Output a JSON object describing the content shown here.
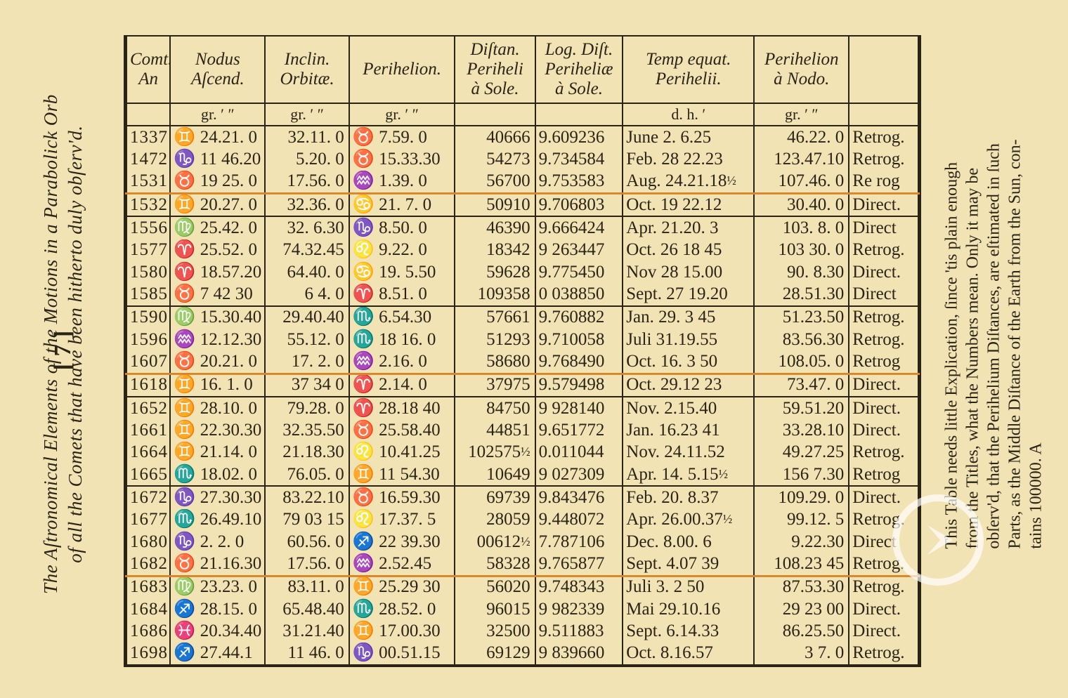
{
  "page_number_label": "[ 7 ]",
  "left_title_line1": "The Aſtronomical Elements of the Motions in a Parabolick Orb",
  "left_title_line2": "of all the Comets that have been hitherto duly obſerv'd.",
  "right_caption_line1": "This Table needs little Explication, ſince 'tis plain enough",
  "right_caption_line2": "from the Titles, what the Numbers mean.  Only it may be",
  "right_caption_line3": "obſerv'd, that the Perihelium Diſtances, are eſtimated in ſuch",
  "right_caption_line4": "Parts, as the Middle Diſtance of the Earth from the Sun, con-",
  "right_caption_line5": "tains 100000.          A",
  "highlight_color": "#e08a2c",
  "highlight_rows_after_index": [
    2,
    10,
    19
  ],
  "columns": [
    {
      "header": "Comt.<br>An",
      "units": ""
    },
    {
      "header": "Nodus<br>Aſcend.",
      "units": "gr. ′ ″"
    },
    {
      "header": "Inclin.<br>Orbitæ.",
      "units": "gr. ′ ″"
    },
    {
      "header": "Perihelion.",
      "units": "gr. ′ ″"
    },
    {
      "header": "Diſtan.<br>Periheli<br>à Sole.",
      "units": ""
    },
    {
      "header": "Log. Diſt.<br>Periheliæ<br>à Sole.",
      "units": ""
    },
    {
      "header": "Temp equat.<br>Perihelii.",
      "units": "d.  h.  ′"
    },
    {
      "header": "Perihelion<br>à Nodo.",
      "units": "gr. ′ ″"
    },
    {
      "header": "",
      "units": ""
    }
  ],
  "rows": [
    {
      "g": 0,
      "year": "1337",
      "nodus": "♊ 24.21. 0",
      "inclin": "32.11. 0",
      "perih": "♉  7.59. 0",
      "dist": "40666",
      "log": "9.609236",
      "temp": "June  2. 6.25",
      "pnodo": " 46.22. 0",
      "dir": "Retrog."
    },
    {
      "g": 0,
      "year": "1472",
      "nodus": "♑ 11 46.20",
      "inclin": " 5.20. 0",
      "perih": "♉ 15.33.30",
      "dist": "54273",
      "log": "9.734584",
      "temp": "Feb. 28 22.23",
      "pnodo": "123.47.10",
      "dir": "Retrog."
    },
    {
      "g": 0,
      "year": "1531",
      "nodus": "♉ 19 25. 0",
      "inclin": "17.56. 0",
      "perih": "♒  1.39. 0",
      "dist": "56700",
      "log": "9.753583",
      "temp": "Aug. 24.21.18½",
      "pnodo": "107.46. 0",
      "dir": "Re rog"
    },
    {
      "g": 1,
      "year": "1532",
      "nodus": "♊ 20.27. 0",
      "inclin": "32.36. 0",
      "perih": "♋ 21. 7. 0",
      "dist": "50910",
      "log": "9.706803",
      "temp": "Oct. 19 22.12",
      "pnodo": " 30.40. 0",
      "dir": "Direct."
    },
    {
      "g": 2,
      "year": "1556",
      "nodus": "♍ 25.42. 0",
      "inclin": "32. 6.30",
      "perih": "♑  8.50. 0",
      "dist": "46390",
      "log": "9.666424",
      "temp": "Apr. 21.20. 3",
      "pnodo": "103. 8. 0",
      "dir": "Direct"
    },
    {
      "g": 2,
      "year": "1577",
      "nodus": "♈ 25.52. 0",
      "inclin": "74.32.45",
      "perih": "♌  9.22. 0",
      "dist": "18342",
      "log": "9 263447",
      "temp": "Oct. 26 18 45",
      "pnodo": "103 30. 0",
      "dir": "Retrog."
    },
    {
      "g": 2,
      "year": "1580",
      "nodus": "♈ 18.57.20",
      "inclin": "64.40. 0",
      "perih": "♋ 19. 5.50",
      "dist": "59628",
      "log": "9.775450",
      "temp": "Nov 28 15.00",
      "pnodo": " 90. 8.30",
      "dir": "Direct."
    },
    {
      "g": 2,
      "year": "1585",
      "nodus": "♉  7 42 30",
      "inclin": " 6  4. 0",
      "perih": "♈  8.51. 0",
      "dist": "109358",
      "log": "0 038850",
      "temp": "Sept. 27 19.20",
      "pnodo": " 28.51.30",
      "dir": "Direct"
    },
    {
      "g": 3,
      "year": "1590",
      "nodus": "♍ 15.30.40",
      "inclin": "29.40.40",
      "perih": "♏  6.54.30",
      "dist": "57661",
      "log": "9.760882",
      "temp": "Jan. 29. 3 45",
      "pnodo": " 51.23.50",
      "dir": "Retrog."
    },
    {
      "g": 3,
      "year": "1596",
      "nodus": "♒ 12.12.30",
      "inclin": "55.12. 0",
      "perih": "♏ 18 16. 0",
      "dist": "51293",
      "log": "9.710058",
      "temp": "Juli 31.19.55",
      "pnodo": " 83.56.30",
      "dir": "Retrog."
    },
    {
      "g": 3,
      "year": "1607",
      "nodus": "♉ 20.21. 0",
      "inclin": "17. 2. 0",
      "perih": "♒  2.16. 0",
      "dist": "58680",
      "log": "9.768490",
      "temp": "Oct. 16. 3 50",
      "pnodo": "108.05. 0",
      "dir": "Retrog"
    },
    {
      "g": 4,
      "year": "1618",
      "nodus": "♊ 16. 1. 0",
      "inclin": "37 34  0",
      "perih": "♈  2.14. 0",
      "dist": "37975",
      "log": "9.579498",
      "temp": "Oct. 29.12 23",
      "pnodo": " 73.47. 0",
      "dir": "Direct."
    },
    {
      "g": 5,
      "year": "1652",
      "nodus": "♊ 28.10. 0",
      "inclin": "79.28. 0",
      "perih": "♈ 28.18 40",
      "dist": "84750",
      "log": "9 928140",
      "temp": "Nov.  2.15.40",
      "pnodo": " 59.51.20",
      "dir": "Direct."
    },
    {
      "g": 5,
      "year": "1661",
      "nodus": "♊ 22.30.30",
      "inclin": "32.35.50",
      "perih": "♉ 25.58.40",
      "dist": "44851",
      "log": "9.651772",
      "temp": "Jan. 16.23 41",
      "pnodo": " 33.28.10",
      "dir": "Direct."
    },
    {
      "g": 5,
      "year": "1664",
      "nodus": "♊ 21.14. 0",
      "inclin": "21.18.30",
      "perih": "♌ 10.41.25",
      "dist": "102575½",
      "log": "0.011044",
      "temp": "Nov. 24.11.52",
      "pnodo": " 49.27.25",
      "dir": "Retrog."
    },
    {
      "g": 5,
      "year": "1665",
      "nodus": "♏ 18.02. 0",
      "inclin": "76.05. 0",
      "perih": "♊ 11 54.30",
      "dist": "10649",
      "log": "9 027309",
      "temp": "Apr. 14. 5.15½",
      "pnodo": "156  7.30",
      "dir": "Retrog"
    },
    {
      "g": 6,
      "year": "1672",
      "nodus": "♑ 27.30.30",
      "inclin": "83.22.10",
      "perih": "♉ 16.59.30",
      "dist": "69739",
      "log": "9.843476",
      "temp": "Feb. 20. 8.37",
      "pnodo": "109.29. 0",
      "dir": "Direct."
    },
    {
      "g": 6,
      "year": "1677",
      "nodus": "♏ 26.49.10",
      "inclin": "79 03 15",
      "perih": "♌ 17.37. 5",
      "dist": "28059",
      "log": "9.448072",
      "temp": "Apr. 26.00.37½",
      "pnodo": " 99.12. 5",
      "dir": "Retrog."
    },
    {
      "g": 6,
      "year": "1680",
      "nodus": "♑  2. 2. 0",
      "inclin": "60.56. 0",
      "perih": "♐ 22 39.30",
      "dist": "00612½",
      "log": "7.787106",
      "temp": "Dec.  8.00. 6",
      "pnodo": "  9.22.30",
      "dir": "Direct"
    },
    {
      "g": 6,
      "year": "1682",
      "nodus": "♉ 21.16.30",
      "inclin": "17.56. 0",
      "perih": "♒  2.52.45",
      "dist": "58328",
      "log": "9.765877",
      "temp": "Sept.  4.07 39",
      "pnodo": "108.23 45",
      "dir": "Retrog."
    },
    {
      "g": 7,
      "year": "1683",
      "nodus": "♍ 23.23. 0",
      "inclin": "83.11. 0",
      "perih": "♊ 25.29 30",
      "dist": "56020",
      "log": "9.748343",
      "temp": "Juli  3. 2 50",
      "pnodo": " 87.53.30",
      "dir": "Retrog."
    },
    {
      "g": 7,
      "year": "1684",
      "nodus": "♐ 28.15. 0",
      "inclin": "65.48.40",
      "perih": "♏ 28.52. 0",
      "dist": "96015",
      "log": "9 982339",
      "temp": "Mai 29.10.16",
      "pnodo": " 29 23 00",
      "dir": "Direct."
    },
    {
      "g": 7,
      "year": "1686",
      "nodus": "♓ 20.34.40",
      "inclin": "31.21.40",
      "perih": "♊ 17.00.30",
      "dist": "32500",
      "log": "9.511883",
      "temp": "Sept.  6.14.33",
      "pnodo": " 86.25.50",
      "dir": "Direct."
    },
    {
      "g": 7,
      "year": "1698",
      "nodus": "♐ 27.44.1",
      "inclin": "11 46. 0",
      "perih": "♑ 00.51.15",
      "dist": "69129",
      "log": "9 839660",
      "temp": "Oct.  8.16.57",
      "pnodo": "  3  7. 0",
      "dir": "Retrog."
    }
  ]
}
